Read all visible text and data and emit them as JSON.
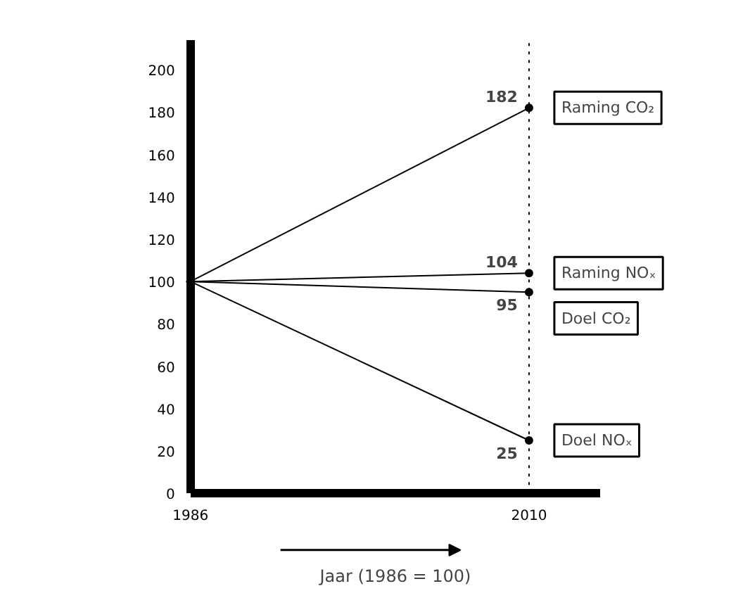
{
  "chart_data": {
    "type": "line",
    "xlabel": "Jaar (1986 = 100)",
    "x": [
      1986,
      2010
    ],
    "xlim": [
      1986,
      2015
    ],
    "xticks": [
      1986,
      2010
    ],
    "ylim": [
      0,
      214
    ],
    "yticks": [
      0,
      20,
      40,
      60,
      80,
      100,
      120,
      140,
      160,
      180,
      200
    ],
    "series": [
      {
        "name": "Raming CO₂",
        "color": "#000000",
        "values": [
          100,
          182
        ],
        "value_labels": [
          null,
          "182"
        ]
      },
      {
        "name": "Raming NOₓ",
        "color": "#000000",
        "values": [
          100,
          104
        ],
        "value_labels": [
          null,
          "104"
        ]
      },
      {
        "name": "Doel CO₂",
        "color": "#000000",
        "values": [
          100,
          95
        ],
        "value_labels": [
          null,
          "95"
        ]
      },
      {
        "name": "Doel NOₓ",
        "color": "#000000",
        "values": [
          100,
          25
        ],
        "value_labels": [
          null,
          "25"
        ]
      }
    ],
    "ref_lines": [
      {
        "axis": "x",
        "value": 2010,
        "line_style": "dotted",
        "color": "#000000"
      }
    ],
    "grid": false,
    "marker": "circle",
    "line_style": "solid"
  }
}
